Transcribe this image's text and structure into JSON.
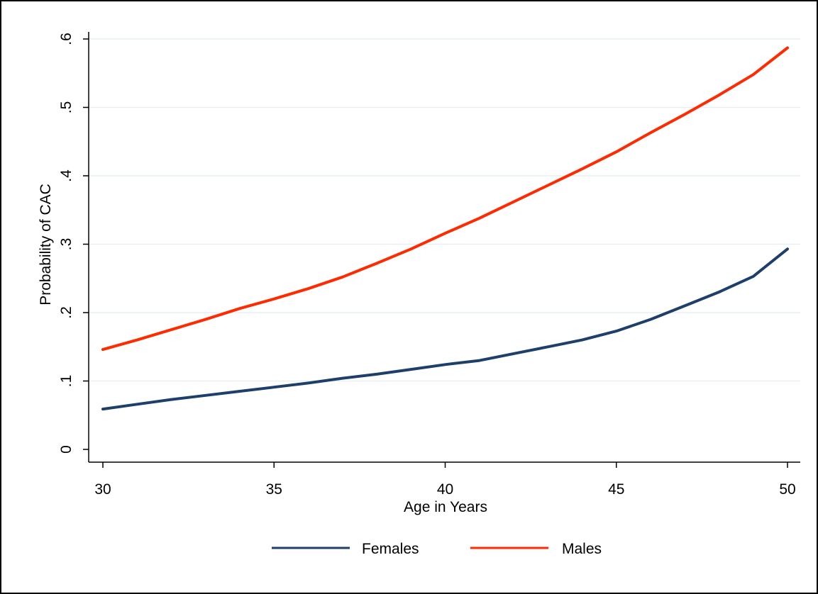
{
  "chart_data": {
    "type": "line",
    "title": "",
    "xlabel": "Age in Years",
    "ylabel": "Probability of CAC",
    "xlim": [
      30,
      50
    ],
    "ylim": [
      0,
      0.6
    ],
    "x_ticks": [
      30,
      35,
      40,
      45,
      50
    ],
    "x_tick_labels": [
      "30",
      "35",
      "40",
      "45",
      "50"
    ],
    "y_ticks": [
      0,
      0.1,
      0.2,
      0.3,
      0.4,
      0.5,
      0.6
    ],
    "y_tick_labels": [
      "0",
      ".1",
      ".2",
      ".3",
      ".4",
      ".5",
      ".6"
    ],
    "grid": "horizontal",
    "legend_position": "bottom",
    "x": [
      30,
      31,
      32,
      33,
      34,
      35,
      36,
      37,
      38,
      39,
      40,
      41,
      42,
      43,
      44,
      45,
      46,
      47,
      48,
      49,
      50
    ],
    "series": [
      {
        "name": "Females",
        "color": "#1f3f6b",
        "values": [
          0.059,
          0.066,
          0.073,
          0.079,
          0.085,
          0.091,
          0.097,
          0.104,
          0.11,
          0.117,
          0.124,
          0.13,
          0.14,
          0.15,
          0.16,
          0.173,
          0.19,
          0.21,
          0.23,
          0.253,
          0.293
        ]
      },
      {
        "name": "Males",
        "color": "#ff2a00",
        "values": [
          0.146,
          0.16,
          0.175,
          0.19,
          0.206,
          0.22,
          0.235,
          0.252,
          0.272,
          0.293,
          0.316,
          0.338,
          0.362,
          0.386,
          0.41,
          0.435,
          0.463,
          0.49,
          0.518,
          0.548,
          0.587
        ]
      }
    ]
  }
}
